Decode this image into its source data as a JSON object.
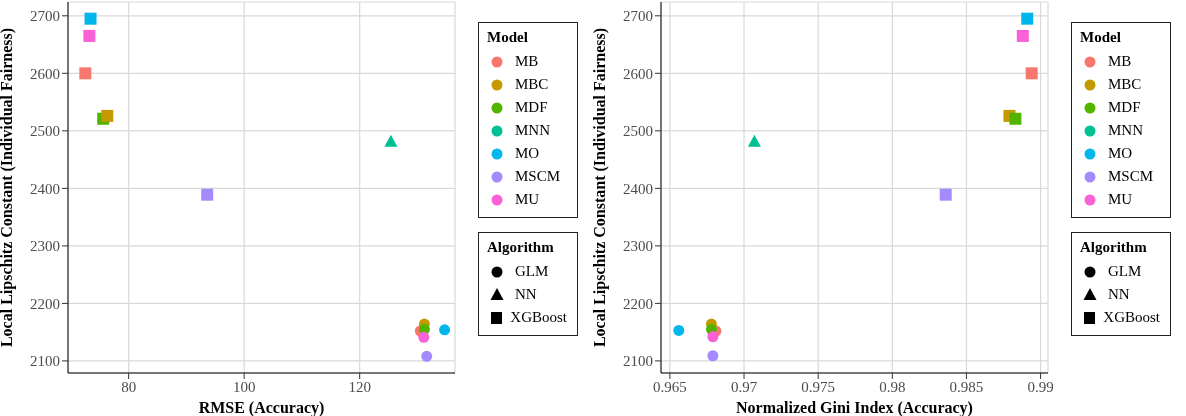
{
  "chart_data": [
    {
      "type": "scatter",
      "xlabel": "RMSE (Accuracy)",
      "ylabel": "Local Lipschitz Constant (Individual Fairness)",
      "xlim": [
        69.5,
        136.5
      ],
      "xticks": [
        80,
        100,
        120
      ],
      "ylim": [
        2079,
        2724
      ],
      "yticks": [
        2100,
        2200,
        2300,
        2400,
        2500,
        2600,
        2700
      ],
      "grid": true,
      "legend": "right",
      "legend_title": [
        "Model",
        "Algorithm"
      ],
      "series": [
        {
          "name": "MB",
          "color": "#f8766d",
          "marker": "circle",
          "x": [
            130.5
          ],
          "values": [
            2152
          ]
        },
        {
          "name": "MBC",
          "color": "#c49a00",
          "marker": "circle",
          "x": [
            131.2
          ],
          "values": [
            2164
          ]
        },
        {
          "name": "MDF",
          "color": "#53b400",
          "marker": "circle",
          "x": [
            131.2
          ],
          "values": [
            2155
          ]
        },
        {
          "name": "MNN",
          "color": "#00c094",
          "marker": "triangle",
          "x": [
            125.4
          ],
          "values": [
            2481
          ]
        },
        {
          "name": "MO",
          "color": "#00b6eb",
          "marker": "circle",
          "x": [
            134.7
          ],
          "values": [
            2154
          ]
        },
        {
          "name": "MSCM",
          "color": "#a58aff",
          "marker": "circle",
          "x": [
            131.6
          ],
          "values": [
            2108
          ]
        },
        {
          "name": "MU",
          "color": "#fb61d7",
          "marker": "circle",
          "x": [
            131.1
          ],
          "values": [
            2141
          ]
        },
        {
          "color": "#f8766d",
          "marker": "square",
          "x": [
            72.5
          ],
          "values": [
            2600
          ]
        },
        {
          "color": "#53b400",
          "marker": "square",
          "x": [
            75.6
          ],
          "values": [
            2521
          ]
        },
        {
          "color": "#c49a00",
          "marker": "square",
          "x": [
            76.3
          ],
          "values": [
            2526
          ]
        },
        {
          "color": "#00b6eb",
          "marker": "square",
          "x": [
            73.4
          ],
          "values": [
            2695
          ]
        },
        {
          "color": "#a58aff",
          "marker": "square",
          "x": [
            93.6
          ],
          "values": [
            2389
          ]
        },
        {
          "color": "#fb61d7",
          "marker": "square",
          "x": [
            73.2
          ],
          "values": [
            2665
          ]
        },
        {
          "name": "GLM",
          "color": "#000000",
          "marker": "circle"
        },
        {
          "name": "NN",
          "color": "#000000",
          "marker": "triangle"
        },
        {
          "name": "XGBoost",
          "color": "#000000",
          "marker": "square"
        }
      ]
    },
    {
      "type": "scatter",
      "xlabel": "Normalized Gini Index (Accuracy)",
      "ylabel": "Local Lipschitz Constant (Individual Fairness)",
      "xlim": [
        0.9644,
        0.9905
      ],
      "xticks": [
        0.965,
        0.97,
        0.975,
        0.98,
        0.985,
        0.99
      ],
      "ylim": [
        2079,
        2724
      ],
      "yticks": [
        2100,
        2200,
        2300,
        2400,
        2500,
        2600,
        2700
      ],
      "grid": true,
      "legend": "right",
      "legend_title": [
        "Model",
        "Algorithm"
      ],
      "series": [
        {
          "name": "MB",
          "color": "#f8766d",
          "marker": "circle",
          "x": [
            0.9681
          ],
          "values": [
            2152
          ]
        },
        {
          "name": "MBC",
          "color": "#c49a00",
          "marker": "circle",
          "x": [
            0.9678
          ],
          "values": [
            2164
          ]
        },
        {
          "name": "MDF",
          "color": "#53b400",
          "marker": "circle",
          "x": [
            0.9678
          ],
          "values": [
            2155
          ]
        },
        {
          "name": "MNN",
          "color": "#00c094",
          "marker": "triangle",
          "x": [
            0.9707
          ],
          "values": [
            2481
          ]
        },
        {
          "name": "MO",
          "color": "#00b6eb",
          "marker": "circle",
          "x": [
            0.9656
          ],
          "values": [
            2153
          ]
        },
        {
          "name": "MSCM",
          "color": "#a58aff",
          "marker": "circle",
          "x": [
            0.9679
          ],
          "values": [
            2109
          ]
        },
        {
          "name": "MU",
          "color": "#fb61d7",
          "marker": "circle",
          "x": [
            0.9679
          ],
          "values": [
            2142
          ]
        },
        {
          "color": "#f8766d",
          "marker": "square",
          "x": [
            0.9894
          ],
          "values": [
            2600
          ]
        },
        {
          "color": "#c49a00",
          "marker": "square",
          "x": [
            0.9879
          ],
          "values": [
            2526
          ]
        },
        {
          "color": "#53b400",
          "marker": "square",
          "x": [
            0.9883
          ],
          "values": [
            2521
          ]
        },
        {
          "color": "#00b6eb",
          "marker": "square",
          "x": [
            0.9891
          ],
          "values": [
            2695
          ]
        },
        {
          "color": "#a58aff",
          "marker": "square",
          "x": [
            0.9836
          ],
          "values": [
            2389
          ]
        },
        {
          "color": "#fb61d7",
          "marker": "square",
          "x": [
            0.9888
          ],
          "values": [
            2665
          ]
        },
        {
          "name": "GLM",
          "color": "#000000",
          "marker": "circle"
        },
        {
          "name": "NN",
          "color": "#000000",
          "marker": "triangle"
        },
        {
          "name": "XGBoost",
          "color": "#000000",
          "marker": "square"
        }
      ]
    }
  ]
}
